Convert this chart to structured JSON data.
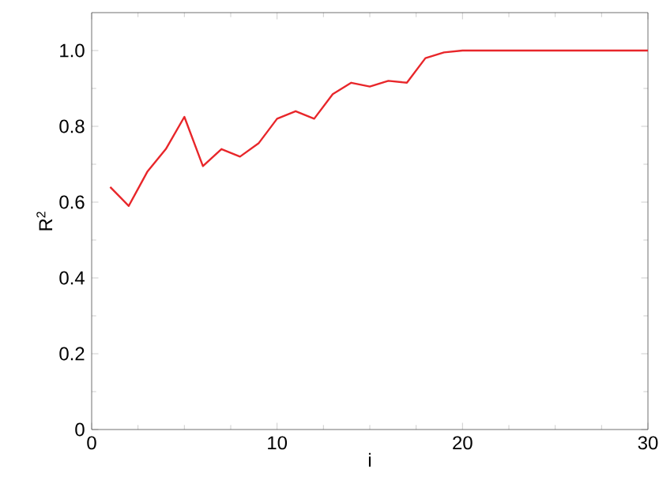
{
  "chart_data": {
    "type": "line",
    "xlabel": "i",
    "ylabel": "R$^{2}$",
    "x": [
      1,
      2,
      3,
      4,
      5,
      6,
      7,
      8,
      9,
      10,
      11,
      12,
      13,
      14,
      15,
      16,
      17,
      18,
      19,
      20,
      21,
      22,
      23,
      24,
      25,
      26,
      27,
      28,
      29,
      30
    ],
    "series": [
      {
        "color": "#e8262a",
        "values": [
          0.64,
          0.59,
          0.68,
          0.74,
          0.825,
          0.695,
          0.74,
          0.72,
          0.755,
          0.82,
          0.84,
          0.82,
          0.885,
          0.915,
          0.905,
          0.92,
          0.915,
          0.98,
          0.995,
          1.0,
          1.0,
          1.0,
          1.0,
          1.0,
          1.0,
          1.0,
          1.0,
          1.0,
          1.0,
          1.0
        ]
      }
    ],
    "xlim": [
      0,
      30
    ],
    "ylim": [
      0,
      1.1
    ],
    "xticks": [
      0,
      10,
      20,
      30
    ],
    "yticks": [
      0,
      {
        "value": 0.2,
        "label": "0.2"
      },
      {
        "value": 0.4,
        "label": "0.4"
      },
      {
        "value": 0.6,
        "label": "0.6"
      },
      {
        "value": 0.8,
        "label": "0.8"
      },
      {
        "value": 1.0,
        "label": "1.0"
      }
    ],
    "grid": false,
    "marker": "none",
    "line_style": "solid"
  }
}
